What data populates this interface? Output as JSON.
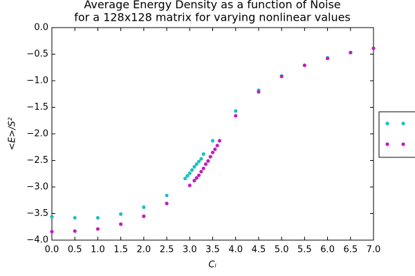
{
  "chart_data": {
    "type": "scatter",
    "title": "Average Energy Density as a function of Noise\nfor a 128x128 matrix for varying nonlinear values",
    "x_label": "Cₗ",
    "y_label": "<E>/S²",
    "xlim": [
      0,
      7
    ],
    "ylim": [
      -4,
      0
    ],
    "xticks": [
      {
        "value": 0,
        "label": "0.0"
      },
      {
        "value": 0.5,
        "label": "0.5"
      },
      {
        "value": 1,
        "label": "1.0"
      },
      {
        "value": 1.5,
        "label": "1.5"
      },
      {
        "value": 2,
        "label": "2.0"
      },
      {
        "value": 2.5,
        "label": "2.5"
      },
      {
        "value": 3,
        "label": "3.0"
      },
      {
        "value": 3.5,
        "label": "3.5"
      },
      {
        "value": 4,
        "label": "4.0"
      },
      {
        "value": 4.5,
        "label": "4.5"
      },
      {
        "value": 5,
        "label": "5.0"
      },
      {
        "value": 5.5,
        "label": "5.5"
      },
      {
        "value": 6,
        "label": "6.0"
      },
      {
        "value": 6.5,
        "label": "6.5"
      },
      {
        "value": 7,
        "label": "7.0"
      }
    ],
    "yticks": [
      {
        "value": 0,
        "label": "0.0"
      },
      {
        "value": -0.5,
        "label": "−0.5"
      },
      {
        "value": -1,
        "label": "−1.0"
      },
      {
        "value": -1.5,
        "label": "−1.5"
      },
      {
        "value": -2,
        "label": "−2.0"
      },
      {
        "value": -2.5,
        "label": "−2.5"
      },
      {
        "value": -3,
        "label": "−3.0"
      },
      {
        "value": -3.5,
        "label": "−3.5"
      },
      {
        "value": -4,
        "label": "−4.0"
      }
    ],
    "legend": "right",
    "series": [
      {
        "color": "#1fbfbf",
        "x": [
          0,
          0.5,
          1,
          1.5,
          2,
          2.5,
          2.9,
          2.95,
          3,
          3.05,
          3.1,
          3.15,
          3.2,
          3.25,
          3.3,
          3.5,
          4,
          4.5,
          5,
          5.5,
          6,
          6.5,
          7
        ],
        "values": [
          -3.56,
          -3.58,
          -3.58,
          -3.51,
          -3.38,
          -3.16,
          -2.84,
          -2.79,
          -2.74,
          -2.68,
          -2.62,
          -2.57,
          -2.52,
          -2.47,
          -2.38,
          -2.13,
          -1.57,
          -1.18,
          -0.91,
          -0.71,
          -0.57,
          -0.47,
          -0.39
        ]
      },
      {
        "color": "#bf1fbf",
        "x": [
          0,
          0.5,
          1,
          1.5,
          2,
          2.5,
          3,
          3.1,
          3.15,
          3.2,
          3.25,
          3.3,
          3.35,
          3.4,
          3.45,
          3.5,
          3.55,
          3.6,
          3.65,
          4,
          4.5,
          5,
          5.5,
          6,
          6.5,
          7
        ],
        "values": [
          -3.84,
          -3.83,
          -3.79,
          -3.7,
          -3.55,
          -3.31,
          -2.97,
          -2.88,
          -2.83,
          -2.78,
          -2.71,
          -2.65,
          -2.57,
          -2.51,
          -2.43,
          -2.35,
          -2.29,
          -2.22,
          -2.13,
          -1.66,
          -1.21,
          -0.92,
          -0.71,
          -0.58,
          -0.47,
          -0.39
        ]
      }
    ]
  }
}
